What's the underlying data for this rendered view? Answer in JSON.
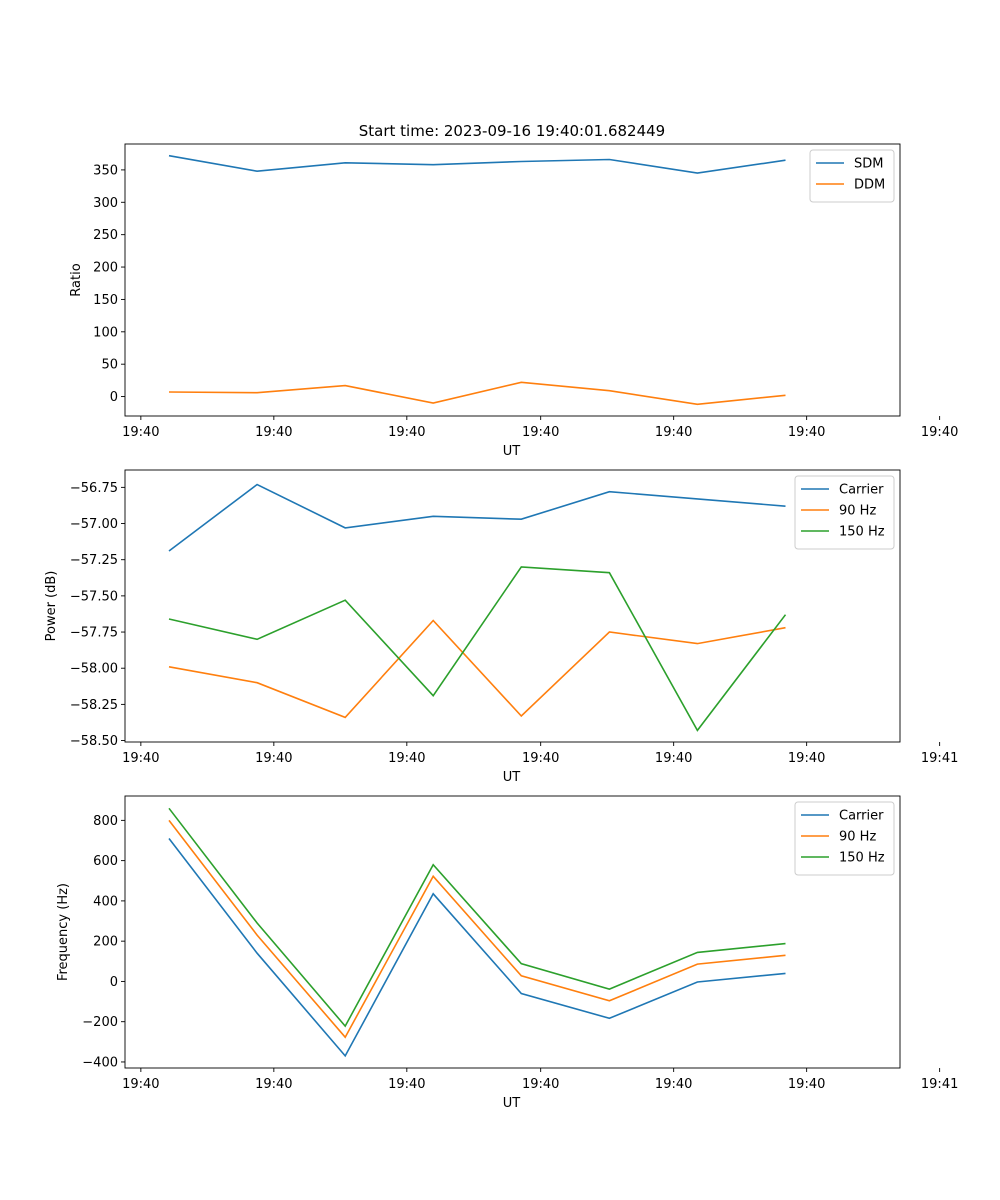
{
  "figure_title": "Start time: 2023-09-16 19:40:01.682449",
  "colors": {
    "blue": "#1f77b4",
    "orange": "#ff7f0e",
    "green": "#2ca02c",
    "axis": "#000000"
  },
  "chart_data": [
    {
      "type": "line",
      "title": "Start time: 2023-09-16 19:40:01.682449",
      "xlabel": "UT",
      "ylabel": "Ratio",
      "x": [
        1,
        2,
        3,
        4,
        5,
        6,
        7,
        8
      ],
      "xlim": [
        0.5,
        9.3
      ],
      "x_ticks": [
        0.68,
        2.19,
        3.7,
        5.22,
        6.73,
        8.24,
        9.75
      ],
      "x_tick_labels": [
        "19:40",
        "19:40",
        "19:40",
        "19:40",
        "19:40",
        "19:40",
        "19:40"
      ],
      "ylim": [
        -30,
        390
      ],
      "y_ticks": [
        0,
        50,
        100,
        150,
        200,
        250,
        300,
        350
      ],
      "y_tick_labels": [
        "0",
        "50",
        "100",
        "150",
        "200",
        "250",
        "300",
        "350"
      ],
      "legend_position": "top-right",
      "series": [
        {
          "name": "SDM",
          "color": "#1f77b4",
          "values": [
            372,
            348,
            361,
            358,
            363,
            366,
            345,
            365
          ]
        },
        {
          "name": "DDM",
          "color": "#ff7f0e",
          "values": [
            7,
            6,
            17,
            -10,
            22,
            9,
            -12,
            2
          ]
        }
      ]
    },
    {
      "type": "line",
      "title": "",
      "xlabel": "UT",
      "ylabel": "Power (dB)",
      "x": [
        1,
        2,
        3,
        4,
        5,
        6,
        7,
        8
      ],
      "xlim": [
        0.5,
        9.3
      ],
      "x_ticks": [
        0.68,
        2.19,
        3.7,
        5.22,
        6.73,
        8.24,
        9.75
      ],
      "x_tick_labels": [
        "19:40",
        "19:40",
        "19:40",
        "19:40",
        "19:40",
        "19:40",
        "19:41"
      ],
      "ylim": [
        -58.51,
        -56.63
      ],
      "y_ticks": [
        -58.5,
        -58.25,
        -58.0,
        -57.75,
        -57.5,
        -57.25,
        -57.0,
        -56.75
      ],
      "y_tick_labels": [
        "−58.50",
        "−58.25",
        "−58.00",
        "−57.75",
        "−57.50",
        "−57.25",
        "−57.00",
        "−56.75"
      ],
      "legend_position": "top-right",
      "series": [
        {
          "name": "Carrier",
          "color": "#1f77b4",
          "values": [
            -57.19,
            -56.73,
            -57.03,
            -56.95,
            -56.97,
            -56.78,
            -56.83,
            -56.88
          ]
        },
        {
          "name": "90 Hz",
          "color": "#ff7f0e",
          "values": [
            -57.99,
            -58.1,
            -58.34,
            -57.67,
            -58.33,
            -57.75,
            -57.83,
            -57.72
          ]
        },
        {
          "name": "150 Hz",
          "color": "#2ca02c",
          "values": [
            -57.66,
            -57.8,
            -57.53,
            -58.19,
            -57.3,
            -57.34,
            -58.43,
            -57.63
          ]
        }
      ]
    },
    {
      "type": "line",
      "title": "",
      "xlabel": "UT",
      "ylabel": "Frequency (Hz)",
      "x": [
        1,
        2,
        3,
        4,
        5,
        6,
        7,
        8
      ],
      "xlim": [
        0.5,
        9.3
      ],
      "x_ticks": [
        0.68,
        2.19,
        3.7,
        5.22,
        6.73,
        8.24,
        9.75
      ],
      "x_tick_labels": [
        "19:40",
        "19:40",
        "19:40",
        "19:40",
        "19:40",
        "19:40",
        "19:41"
      ],
      "ylim": [
        -430,
        921
      ],
      "y_ticks": [
        -400,
        -200,
        0,
        200,
        400,
        600,
        800
      ],
      "y_tick_labels": [
        "−400",
        "−200",
        "0",
        "200",
        "400",
        "600",
        "800"
      ],
      "legend_position": "top-right",
      "series": [
        {
          "name": "Carrier",
          "color": "#1f77b4",
          "values": [
            710,
            140,
            -370,
            435,
            -60,
            -183,
            -3,
            40
          ]
        },
        {
          "name": "90 Hz",
          "color": "#ff7f0e",
          "values": [
            800,
            230,
            -277,
            522,
            28,
            -96,
            86,
            130
          ]
        },
        {
          "name": "150 Hz",
          "color": "#2ca02c",
          "values": [
            860,
            290,
            -222,
            580,
            88,
            -38,
            144,
            188
          ]
        }
      ]
    }
  ]
}
